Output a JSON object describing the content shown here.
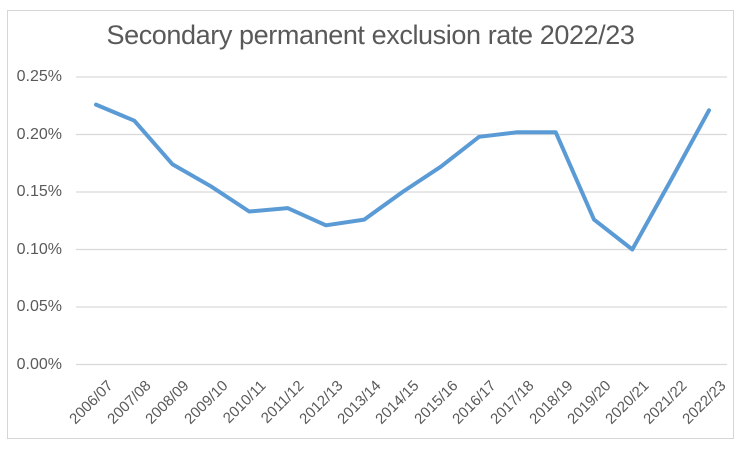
{
  "title": "Secondary permanent exclusion rate 2022/23",
  "colors": {
    "line": "#5B9BD5",
    "title_text": "#595959",
    "axis_text": "#595959",
    "gridline": "#D9D9D9",
    "frame_border": "#D6D6D6",
    "background": "#FFFFFF"
  },
  "chart_data": {
    "type": "line",
    "title": "Secondary permanent exclusion rate 2022/23",
    "xlabel": "",
    "ylabel": "",
    "unit": "percent",
    "categories": [
      "2006/07",
      "2007/08",
      "2008/09",
      "2009/10",
      "2010/11",
      "2011/12",
      "2012/13",
      "2013/14",
      "2014/15",
      "2015/16",
      "2016/17",
      "2017/18",
      "2018/19",
      "2019/20",
      "2020/21",
      "2021/22",
      "2022/23"
    ],
    "series": [
      {
        "name": "Secondary permanent exclusion rate",
        "values": [
          0.226,
          0.212,
          0.174,
          0.155,
          0.133,
          0.136,
          0.121,
          0.126,
          0.15,
          0.172,
          0.198,
          0.202,
          0.202,
          0.126,
          0.1,
          0.16,
          0.221
        ]
      }
    ],
    "ylim": [
      0,
      0.25
    ],
    "y_ticks": [
      {
        "label": "0.00%",
        "value": 0.0
      },
      {
        "label": "0.05%",
        "value": 0.05
      },
      {
        "label": "0.10%",
        "value": 0.1
      },
      {
        "label": "0.15%",
        "value": 0.15
      },
      {
        "label": "0.20%",
        "value": 0.2
      },
      {
        "label": "0.25%",
        "value": 0.25
      }
    ],
    "grid": true,
    "legend": "none"
  }
}
